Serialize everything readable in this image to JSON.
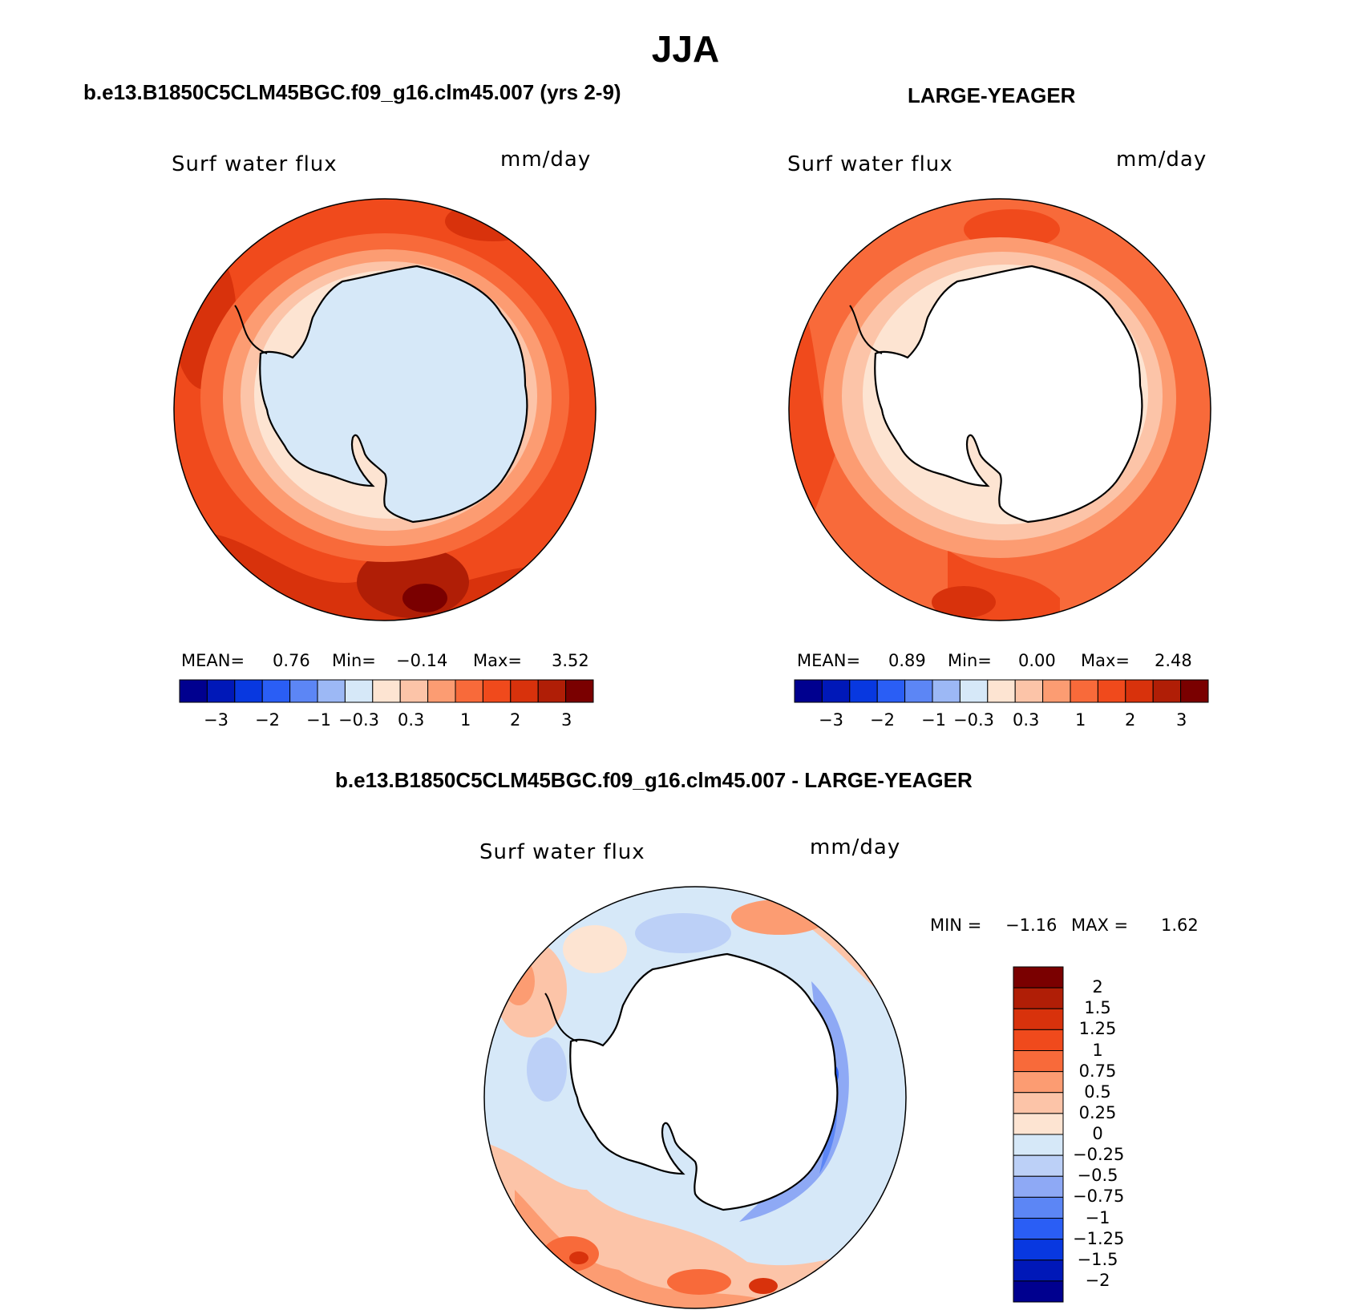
{
  "title": "JJA",
  "colors": {
    "blue_scale": [
      "#00008f",
      "#0018b8",
      "#0838e0",
      "#2a5ef5",
      "#5c86f5",
      "#9cb8f5",
      "#d6e8f8"
    ],
    "red_scale": [
      "#fde4d2",
      "#fcc4a8",
      "#fc9c72",
      "#f86a3a",
      "#f04a1c",
      "#d8320c",
      "#b01e06",
      "#7a0000"
    ],
    "diff_scale": [
      "#00008f",
      "#0018b8",
      "#0838e0",
      "#2a5ef5",
      "#5c86f5",
      "#8ea9f5",
      "#bcd0f7",
      "#d6e8f8",
      "#fde4d2",
      "#fcc4a8",
      "#fc9c72",
      "#f86a3a",
      "#f04a1c",
      "#d8320c",
      "#b01e06",
      "#7a0000"
    ],
    "antarctica_left": "#d6e8f8",
    "antarctica_blank": "#ffffff",
    "coast": "#000000"
  },
  "panels": [
    {
      "id": "model",
      "heading": "b.e13.B1850C5CLM45BGC.f09_g16.clm45.007 (yrs 2-9)",
      "variable": "Surf water flux",
      "units": "mm/day",
      "stats": {
        "mean_label": "MEAN=",
        "mean": "0.76",
        "min_label": "Min=",
        "min": "−0.14",
        "max_label": "Max=",
        "max": "3.52"
      },
      "colorbar_ticks": [
        "−3",
        "−2",
        "−1",
        "−0.3",
        "0.3",
        "1",
        "2",
        "3"
      ]
    },
    {
      "id": "obs",
      "heading": "LARGE-YEAGER",
      "variable": "Surf water flux",
      "units": "mm/day",
      "stats": {
        "mean_label": "MEAN=",
        "mean": "0.89",
        "min_label": "Min=",
        "min": "0.00",
        "max_label": "Max=",
        "max": "2.48"
      },
      "colorbar_ticks": [
        "−3",
        "−2",
        "−1",
        "−0.3",
        "0.3",
        "1",
        "2",
        "3"
      ]
    }
  ],
  "difference": {
    "heading": "b.e13.B1850C5CLM45BGC.f09_g16.clm45.007 - LARGE-YEAGER",
    "variable": "Surf water flux",
    "units": "mm/day",
    "minmax": {
      "min_label": "MIN =",
      "min": "−1.16",
      "max_label": "MAX =",
      "max": "1.62"
    },
    "colorbar_ticks": [
      "2",
      "1.5",
      "1.25",
      "1",
      "0.75",
      "0.5",
      "0.25",
      "0",
      "−0.25",
      "−0.5",
      "−0.75",
      "−1",
      "−1.25",
      "−1.5",
      "−2"
    ]
  }
}
